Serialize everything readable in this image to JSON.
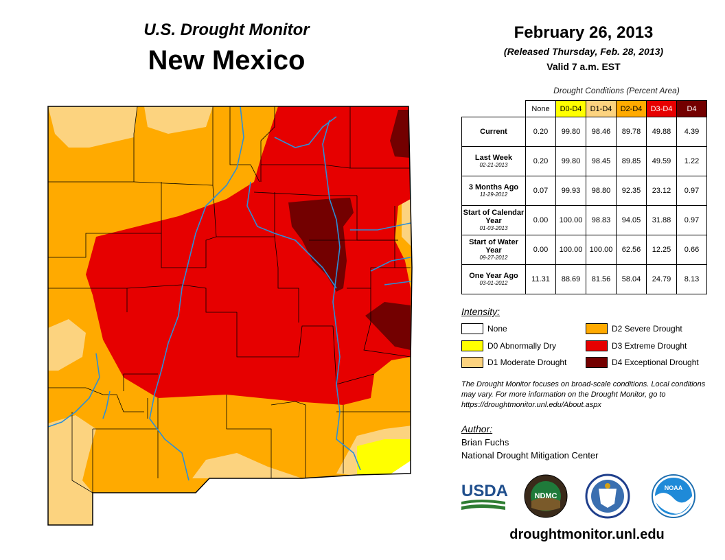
{
  "header": {
    "subtitle": "U.S. Drought Monitor",
    "state": "New Mexico",
    "date": "February 26, 2013",
    "released": "(Released Thursday, Feb. 28, 2013)",
    "valid": "Valid 7 a.m. EST"
  },
  "table": {
    "caption": "Drought Conditions (Percent Area)",
    "columns": [
      {
        "label": "None",
        "color": "#ffffff"
      },
      {
        "label": "D0-D4",
        "color": "#ffff00"
      },
      {
        "label": "D1-D4",
        "color": "#fcd37f"
      },
      {
        "label": "D2-D4",
        "color": "#ffaa00"
      },
      {
        "label": "D3-D4",
        "color": "#e60000"
      },
      {
        "label": "D4",
        "color": "#730000"
      }
    ],
    "rows": [
      {
        "label": "Current",
        "date": "",
        "values": [
          "0.20",
          "99.80",
          "98.46",
          "89.78",
          "49.88",
          "4.39"
        ]
      },
      {
        "label": "Last Week",
        "date": "02-21-2013",
        "values": [
          "0.20",
          "99.80",
          "98.45",
          "89.85",
          "49.59",
          "1.22"
        ]
      },
      {
        "label": "3 Months Ago",
        "date": "11-29-2012",
        "values": [
          "0.07",
          "99.93",
          "98.80",
          "92.35",
          "23.12",
          "0.97"
        ]
      },
      {
        "label": "Start of Calendar Year",
        "date": "01-03-2013",
        "values": [
          "0.00",
          "100.00",
          "98.83",
          "94.05",
          "31.88",
          "0.97"
        ]
      },
      {
        "label": "Start of Water Year",
        "date": "09-27-2012",
        "values": [
          "0.00",
          "100.00",
          "100.00",
          "62.56",
          "12.25",
          "0.66"
        ]
      },
      {
        "label": "One Year Ago",
        "date": "03-01-2012",
        "values": [
          "11.31",
          "88.69",
          "81.56",
          "58.04",
          "24.79",
          "8.13"
        ]
      }
    ]
  },
  "legend": {
    "title": "Intensity:",
    "items": [
      {
        "label": "None",
        "color": "#ffffff"
      },
      {
        "label": "D0 Abnormally Dry",
        "color": "#ffff00"
      },
      {
        "label": "D1 Moderate Drought",
        "color": "#fcd37f"
      },
      {
        "label": "D2 Severe Drought",
        "color": "#ffaa00"
      },
      {
        "label": "D3 Extreme Drought",
        "color": "#e60000"
      },
      {
        "label": "D4 Exceptional Drought",
        "color": "#730000"
      }
    ]
  },
  "note": "The Drought Monitor focuses on broad-scale conditions. Local conditions may vary. For more information on the Drought Monitor, go to https://droughtmonitor.unl.edu/About.aspx",
  "author": {
    "title": "Author:",
    "name": "Brian Fuchs",
    "org": "National Drought Mitigation Center"
  },
  "logos": {
    "usda": "USDA",
    "ndmc": "NDMC",
    "noaa": "NOAA"
  },
  "website": "droughtmonitor.unl.edu",
  "colors": {
    "d1": "#fcd37f",
    "d2": "#ffaa00",
    "d3": "#e60000",
    "d4": "#730000",
    "d0": "#ffff00",
    "river": "#2b8fd8"
  }
}
